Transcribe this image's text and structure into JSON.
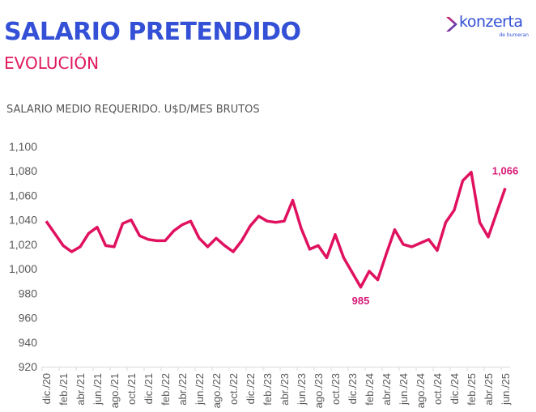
{
  "header": {
    "title": "SALARIO PRETENDIDO",
    "subtitle": "EVOLUCIÓN"
  },
  "logo": {
    "brand": "konzerta",
    "tagline": "de bumeran",
    "icon": "chevron-arrow-icon"
  },
  "colors": {
    "title": "#3350d6",
    "subtitle": "#e0185f",
    "line": "#e0115f",
    "labels": "#d81b78",
    "axis_text": "#595959"
  },
  "chart_data": {
    "type": "line",
    "title": "SALARIO MEDIO REQUERIDO. U$D/MES BRUTOS",
    "xlabel": "",
    "ylabel": "",
    "ylim": [
      920,
      1100
    ],
    "yticks": [
      920,
      940,
      960,
      980,
      1000,
      1020,
      1040,
      1060,
      1080,
      1100
    ],
    "ytick_labels": [
      "920",
      "940",
      "960",
      "980",
      "1,000",
      "1,020",
      "1,040",
      "1,060",
      "1,080",
      "1,100"
    ],
    "grid": false,
    "legend": "none",
    "x": [
      "dic./20",
      "ene./21",
      "feb./21",
      "mar./21",
      "abr./21",
      "may./21",
      "jun./21",
      "jul./21",
      "ago./21",
      "sep./21",
      "oct./21",
      "nov./21",
      "dic./21",
      "ene./22",
      "feb./22",
      "mar./22",
      "abr./22",
      "may./22",
      "jun./22",
      "jul./22",
      "ago./22",
      "sep./22",
      "oct./22",
      "nov./22",
      "dic./22",
      "ene./23",
      "feb./23",
      "mar./23",
      "abr./23",
      "may./23",
      "jun./23",
      "jul./23",
      "ago./23",
      "sep./23",
      "oct./23",
      "nov./23",
      "dic./23",
      "ene./24",
      "feb./24",
      "mar./24",
      "abr./24",
      "may./24",
      "jun./24",
      "jul./24",
      "ago./24",
      "sep./24",
      "oct./24",
      "nov./24",
      "dic./24",
      "ene./25",
      "feb./25",
      "mar./25",
      "abr./25",
      "may./25",
      "jun./25"
    ],
    "xtick_labels": [
      "dic./20",
      "feb./21",
      "abr./21",
      "jun./21",
      "ago./21",
      "oct./21",
      "dic./21",
      "feb./22",
      "abr./22",
      "jun./22",
      "ago./22",
      "oct./22",
      "dic./22",
      "feb./23",
      "abr./23",
      "jun./23",
      "ago./23",
      "oct./23",
      "dic./23",
      "feb./24",
      "abr./24",
      "jun./24",
      "ago./24",
      "oct./24",
      "dic./24",
      "feb./25",
      "abr./25",
      "jun./25"
    ],
    "series": [
      {
        "name": "Salario medio requerido",
        "values": [
          1039,
          1029,
          1019,
          1014,
          1018,
          1029,
          1034,
          1019,
          1018,
          1037,
          1040,
          1027,
          1024,
          1023,
          1023,
          1031,
          1036,
          1039,
          1025,
          1018,
          1025,
          1019,
          1014,
          1023,
          1035,
          1043,
          1039,
          1038,
          1039,
          1056,
          1033,
          1016,
          1019,
          1009,
          1028,
          1009,
          997,
          985,
          998,
          991,
          1012,
          1032,
          1020,
          1018,
          1021,
          1024,
          1015,
          1038,
          1048,
          1072,
          1079,
          1038,
          1026,
          1046,
          1066
        ]
      }
    ],
    "annotations": [
      {
        "x": "ene./24",
        "value": 985,
        "text": "985",
        "position": "below"
      },
      {
        "x": "jun./25",
        "value": 1066,
        "text": "1,066",
        "position": "above"
      }
    ]
  }
}
